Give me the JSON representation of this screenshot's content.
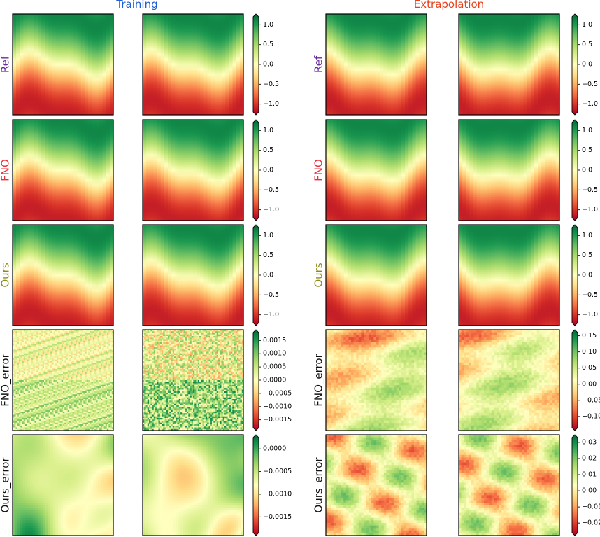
{
  "header": {
    "training": "Training",
    "extrapolation": "Extrapolation"
  },
  "colors": {
    "training_title": "#1f5fd6",
    "extrapolation_title": "#e8401c",
    "ref_label": "#6a2a9a",
    "fno_label": "#e8303a",
    "ours_label": "#8c8c1a",
    "err_label": "#111111"
  },
  "colormap": "RdYlGn",
  "chart_data": {
    "type": "heatmap",
    "rows": [
      "Ref",
      "FNO",
      "Ours",
      "FNO_error",
      "Ours_error"
    ],
    "groups": [
      "Training",
      "Extrapolation"
    ],
    "colorbars": [
      {
        "row": 0,
        "group": 0,
        "range": [
          -1.2,
          1.2
        ],
        "ticks": [
          -1.0,
          -0.5,
          0.0,
          0.5,
          1.0
        ],
        "labels": [
          "−1.0",
          "−0.5",
          "0.0",
          "0.5",
          "1.0"
        ]
      },
      {
        "row": 1,
        "group": 0,
        "range": [
          -1.2,
          1.2
        ],
        "ticks": [
          -1.0,
          -0.5,
          0.0,
          0.5,
          1.0
        ],
        "labels": [
          "−1.0",
          "−0.5",
          "0.0",
          "0.5",
          "1.0"
        ]
      },
      {
        "row": 2,
        "group": 0,
        "range": [
          -1.2,
          1.2
        ],
        "ticks": [
          -1.0,
          -0.5,
          0.0,
          0.5,
          1.0
        ],
        "labels": [
          "−1.0",
          "−0.5",
          "0.0",
          "0.5",
          "1.0"
        ]
      },
      {
        "row": 3,
        "group": 0,
        "range": [
          -0.0018,
          0.0018
        ],
        "ticks": [
          -0.0015,
          -0.001,
          -0.0005,
          0.0,
          0.0005,
          0.001,
          0.0015
        ],
        "labels": [
          "−0.0015",
          "−0.0010",
          "−0.0005",
          "0.0000",
          "0.0005",
          "0.0010",
          "0.0015"
        ]
      },
      {
        "row": 4,
        "group": 0,
        "range": [
          -0.00185,
          0.00025
        ],
        "ticks": [
          -0.0015,
          -0.001,
          -0.0005,
          0.0
        ],
        "labels": [
          "−0.0015",
          "−0.0010",
          "−0.0005",
          "0.0000"
        ]
      },
      {
        "row": 0,
        "group": 1,
        "range": [
          -1.2,
          1.2
        ],
        "ticks": [
          -1.0,
          -0.5,
          0.0,
          0.5,
          1.0
        ],
        "labels": [
          "−1.0",
          "−0.5",
          "0.0",
          "0.5",
          "1.0"
        ]
      },
      {
        "row": 1,
        "group": 1,
        "range": [
          -1.2,
          1.2
        ],
        "ticks": [
          -1.0,
          -0.5,
          0.0,
          0.5,
          1.0
        ],
        "labels": [
          "−1.0",
          "−0.5",
          "0.0",
          "0.5",
          "1.0"
        ]
      },
      {
        "row": 2,
        "group": 1,
        "range": [
          -1.2,
          1.2
        ],
        "ticks": [
          -1.0,
          -0.5,
          0.0,
          0.5,
          1.0
        ],
        "labels": [
          "−1.0",
          "−0.5",
          "0.0",
          "0.5",
          "1.0"
        ]
      },
      {
        "row": 3,
        "group": 1,
        "range": [
          -0.135,
          0.16
        ],
        "ticks": [
          -0.1,
          -0.05,
          0.0,
          0.05,
          0.1,
          0.15
        ],
        "labels": [
          "−0.10",
          "−0.05",
          "0.00",
          "0.05",
          "0.10",
          "0.15"
        ]
      },
      {
        "row": 4,
        "group": 1,
        "range": [
          -0.026,
          0.033
        ],
        "ticks": [
          -0.02,
          -0.01,
          0.0,
          0.01,
          0.02,
          0.03
        ],
        "labels": [
          "−0.02",
          "−0.01",
          "0.00",
          "0.01",
          "0.02",
          "0.03"
        ]
      }
    ]
  }
}
